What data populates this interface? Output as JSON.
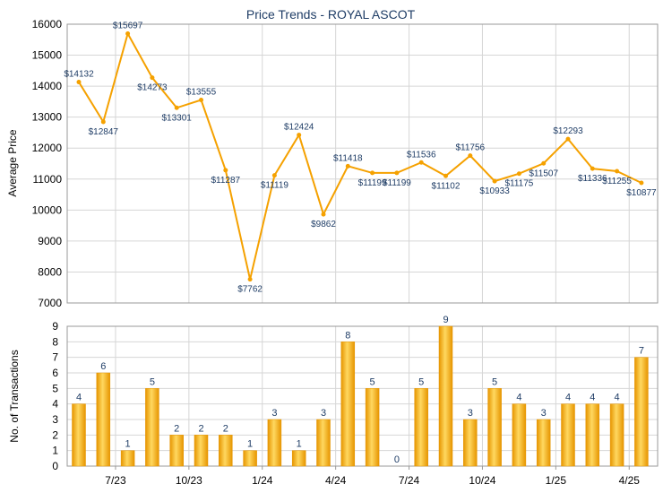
{
  "title": "Price Trends - ROYAL ASCOT",
  "colors": {
    "line": "#f5a100",
    "bar_dark": "#e69500",
    "bar_light": "#ffd860",
    "grid": "#d6d6d6",
    "title": "#1f3d66"
  },
  "chart_data": [
    {
      "type": "line",
      "ylabel": "Average Price",
      "ylim": [
        7000,
        16000
      ],
      "yticks": [
        7000,
        8000,
        9000,
        10000,
        11000,
        12000,
        13000,
        14000,
        15000,
        16000
      ],
      "x_tick_labels": [
        "7/23",
        "10/23",
        "1/24",
        "4/24",
        "7/24",
        "10/24",
        "1/25",
        "4/25"
      ],
      "grid": true,
      "values": [
        14132,
        12847,
        15697,
        14273,
        13301,
        13555,
        11287,
        7762,
        11119,
        12424,
        9862,
        11418,
        11199,
        11199,
        11536,
        11102,
        11756,
        10933,
        11175,
        11507,
        12293,
        11336,
        11255,
        10877
      ],
      "labels": [
        "$14132",
        "$12847",
        "$15697",
        "$14273",
        "$13301",
        "$13555",
        "$11287",
        "$7762",
        "$11119",
        "$12424",
        "$9862",
        "$11418",
        "$11199",
        "$11199",
        "$11536",
        "$11102",
        "$11756",
        "$10933",
        "$11175",
        "$11507",
        "$12293",
        "$11336",
        "$11255",
        "$10877"
      ]
    },
    {
      "type": "bar",
      "ylabel": "No. of Transactions",
      "ylim": [
        0,
        9
      ],
      "yticks": [
        0,
        1,
        2,
        3,
        4,
        5,
        6,
        7,
        8,
        9
      ],
      "x_tick_labels": [
        "7/23",
        "10/23",
        "1/24",
        "4/24",
        "7/24",
        "10/24",
        "1/25",
        "4/25"
      ],
      "grid": true,
      "values": [
        4,
        6,
        1,
        5,
        2,
        2,
        2,
        1,
        3,
        1,
        3,
        8,
        5,
        0,
        5,
        9,
        3,
        5,
        4,
        3,
        4,
        4,
        4,
        7
      ]
    }
  ]
}
